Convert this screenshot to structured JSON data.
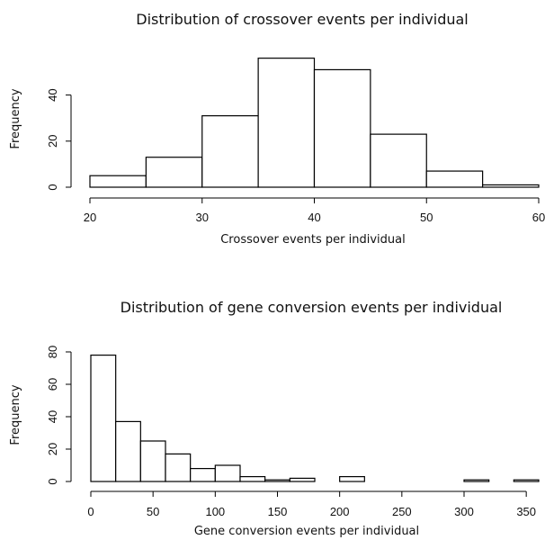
{
  "chart_data": [
    {
      "type": "bar",
      "title": "Distribution of crossover events per individual",
      "xlabel": "Crossover events per individual",
      "ylabel": "Frequency",
      "bins": [
        [
          20,
          25
        ],
        [
          25,
          30
        ],
        [
          30,
          35
        ],
        [
          35,
          40
        ],
        [
          40,
          45
        ],
        [
          45,
          50
        ],
        [
          50,
          55
        ],
        [
          55,
          60
        ]
      ],
      "values": [
        5,
        13,
        31,
        56,
        51,
        23,
        7,
        1
      ],
      "xlim": [
        20,
        60
      ],
      "ylim": [
        0,
        56
      ],
      "xticks": [
        20,
        30,
        40,
        50,
        60
      ],
      "yticks": [
        0,
        20,
        40
      ],
      "grid": false
    },
    {
      "type": "bar",
      "title": "Distribution of gene conversion events per individual",
      "xlabel": "Gene conversion events per individual",
      "ylabel": "Frequency",
      "bins": [
        [
          0,
          20
        ],
        [
          20,
          40
        ],
        [
          40,
          60
        ],
        [
          60,
          80
        ],
        [
          80,
          100
        ],
        [
          100,
          120
        ],
        [
          120,
          140
        ],
        [
          140,
          160
        ],
        [
          160,
          180
        ],
        [
          180,
          200
        ],
        [
          200,
          220
        ],
        [
          220,
          240
        ],
        [
          240,
          260
        ],
        [
          260,
          280
        ],
        [
          280,
          300
        ],
        [
          300,
          320
        ],
        [
          320,
          340
        ],
        [
          340,
          360
        ]
      ],
      "values": [
        78,
        37,
        25,
        17,
        8,
        10,
        3,
        1,
        2,
        0,
        3,
        0,
        0,
        0,
        0,
        1,
        0,
        1
      ],
      "xlim": [
        0,
        360
      ],
      "ylim": [
        0,
        80
      ],
      "xticks": [
        0,
        50,
        100,
        150,
        200,
        250,
        300,
        350
      ],
      "yticks": [
        0,
        20,
        40,
        60,
        80
      ],
      "grid": false
    }
  ]
}
